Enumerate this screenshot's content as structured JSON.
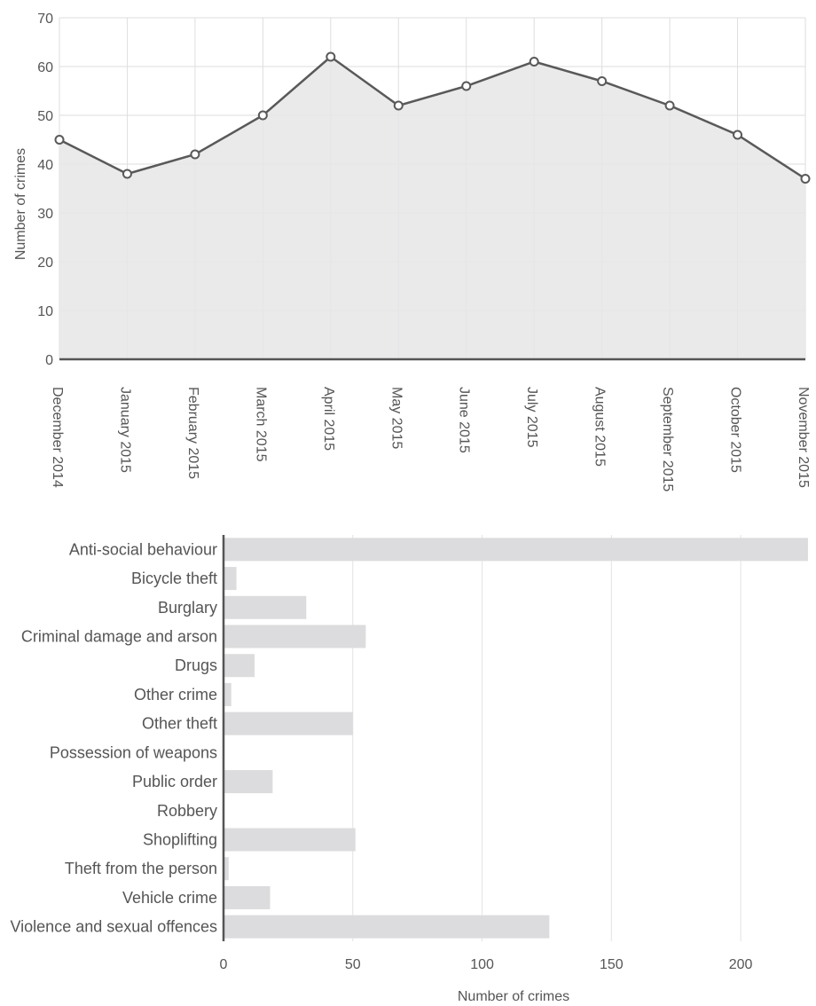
{
  "chart_data": [
    {
      "type": "area",
      "ylabel": "Number of crimes",
      "ylim": [
        0,
        70
      ],
      "yticks": [
        0,
        10,
        20,
        30,
        40,
        50,
        60,
        70
      ],
      "grid": true,
      "categories": [
        "December 2014",
        "January 2015",
        "February 2015",
        "March 2015",
        "April 2015",
        "May 2015",
        "June 2015",
        "July 2015",
        "August 2015",
        "September 2015",
        "October 2015",
        "November 2015"
      ],
      "values": [
        45,
        38,
        42,
        50,
        62,
        52,
        56,
        61,
        57,
        52,
        46,
        37
      ],
      "colors": {
        "line": "#595959",
        "fill": "#e6e6e8",
        "grid": "#dedede",
        "axis": "#555555"
      }
    },
    {
      "type": "bar",
      "orientation": "horizontal",
      "xlabel": "Number of crimes",
      "xlim": [
        0,
        225
      ],
      "xticks": [
        0,
        50,
        100,
        150,
        200
      ],
      "grid": true,
      "categories": [
        "Anti-social behaviour",
        "Bicycle theft",
        "Burglary",
        "Criminal damage and arson",
        "Drugs",
        "Other crime",
        "Other theft",
        "Possession of weapons",
        "Public order",
        "Robbery",
        "Shoplifting",
        "Theft from the person",
        "Vehicle crime",
        "Violence and sexual offences"
      ],
      "values": [
        226,
        5,
        32,
        55,
        12,
        3,
        50,
        0,
        19,
        0,
        51,
        2,
        18,
        126
      ],
      "colors": {
        "bar": "#dcdcde",
        "grid": "#e3e3e3",
        "axis": "#555555"
      }
    }
  ]
}
